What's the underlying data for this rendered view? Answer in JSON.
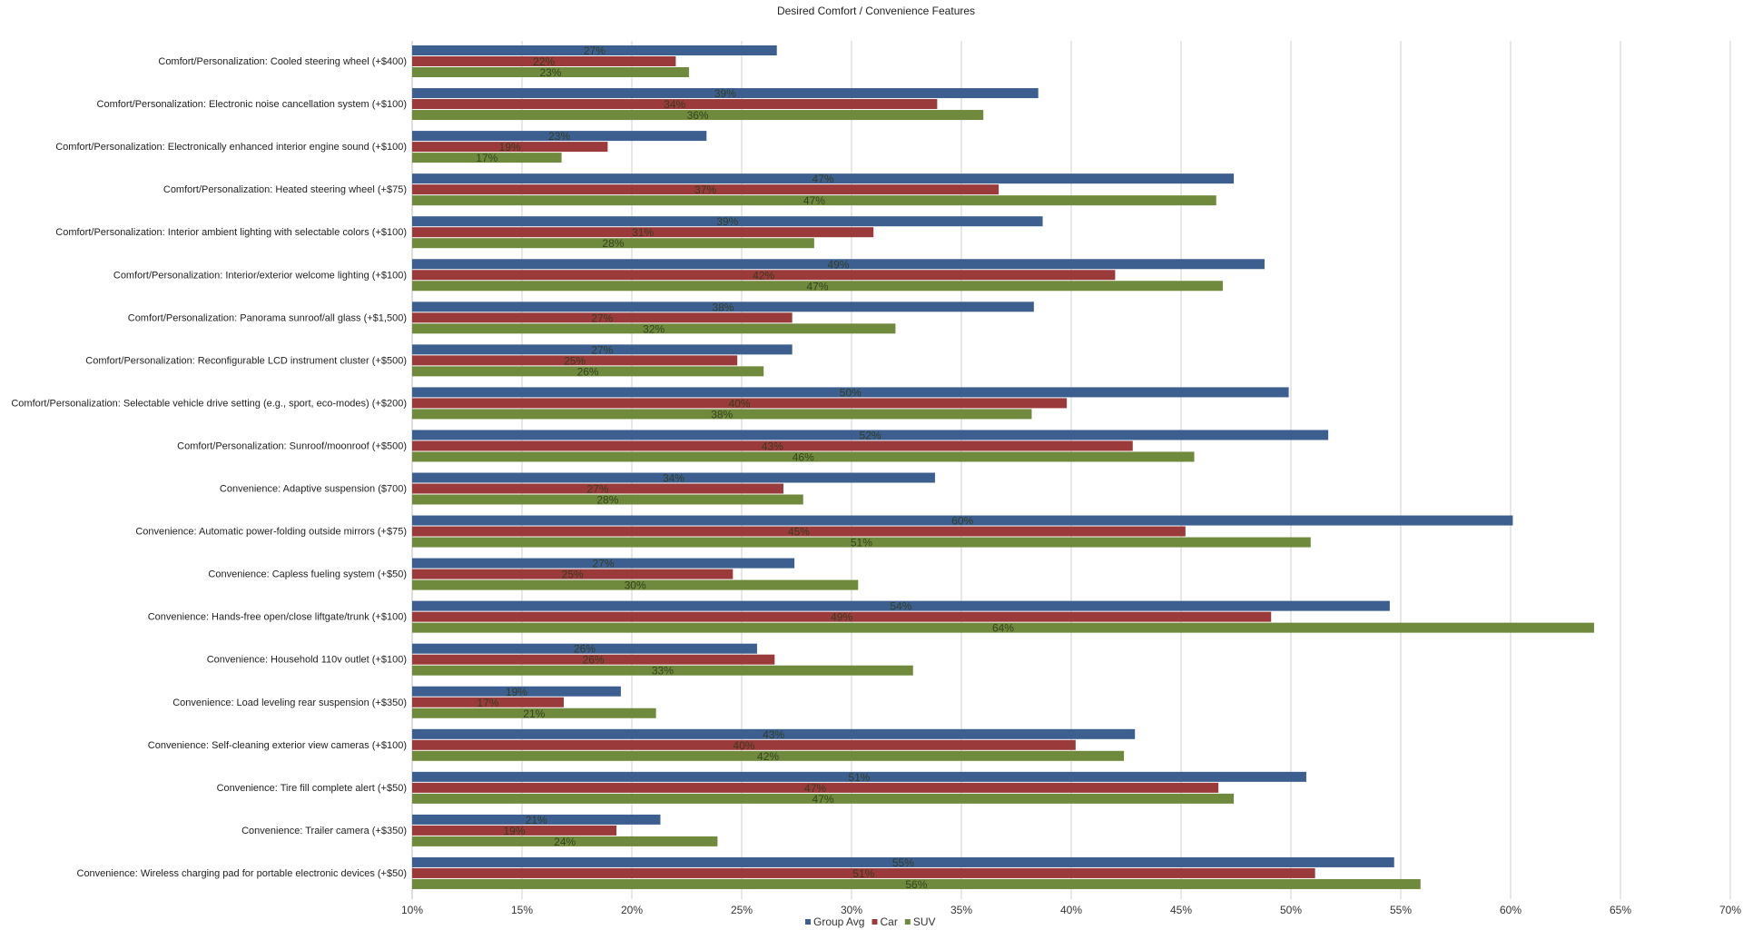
{
  "chart_data": {
    "type": "bar",
    "orientation": "horizontal",
    "title": "Desired Comfort / Convenience Features",
    "categories": [
      "Comfort/Personalization: Cooled steering wheel (+$400)",
      "Comfort/Personalization: Electronic noise cancellation system (+$100)",
      "Comfort/Personalization: Electronically enhanced interior engine sound (+$100)",
      "Comfort/Personalization: Heated steering wheel (+$75)",
      "Comfort/Personalization: Interior ambient lighting with selectable colors (+$100)",
      "Comfort/Personalization: Interior/exterior welcome lighting (+$100)",
      "Comfort/Personalization: Panorama sunroof/all glass (+$1,500)",
      "Comfort/Personalization: Reconfigurable LCD instrument cluster (+$500)",
      "Comfort/Personalization: Selectable vehicle drive setting (e.g., sport, eco-modes) (+$200)",
      "Comfort/Personalization: Sunroof/moonroof (+$500)",
      "Convenience: Adaptive suspension ($700)",
      "Convenience: Automatic power-folding outside mirrors (+$75)",
      "Convenience: Capless fueling system (+$50)",
      "Convenience: Hands-free open/close liftgate/trunk (+$100)",
      "Convenience: Household 110v outlet (+$100)",
      "Convenience: Load leveling rear suspension (+$350)",
      "Convenience: Self-cleaning exterior view cameras (+$100)",
      "Convenience: Tire fill complete alert (+$50)",
      "Convenience: Trailer camera (+$350)",
      "Convenience: Wireless charging pad for portable electronic devices (+$50)"
    ],
    "series": [
      {
        "name": "Group Avg",
        "color": "#3d5f8f",
        "values": [
          26.6,
          38.5,
          23.4,
          47.4,
          38.7,
          48.8,
          38.3,
          27.3,
          49.9,
          51.7,
          33.8,
          60.1,
          27.4,
          54.5,
          25.7,
          19.5,
          42.9,
          50.7,
          21.3,
          54.7
        ],
        "labels": [
          "27%",
          "39%",
          "23%",
          "47%",
          "39%",
          "49%",
          "38%",
          "27%",
          "50%",
          "52%",
          "34%",
          "60%",
          "27%",
          "54%",
          "26%",
          "19%",
          "43%",
          "51%",
          "21%",
          "55%"
        ]
      },
      {
        "name": "Car",
        "color": "#9b3a3a",
        "values": [
          22.0,
          33.9,
          18.9,
          36.7,
          31.0,
          42.0,
          27.3,
          24.8,
          39.8,
          42.8,
          26.9,
          45.2,
          24.6,
          49.1,
          26.5,
          16.9,
          40.2,
          46.7,
          19.3,
          51.1
        ],
        "labels": [
          "22%",
          "34%",
          "19%",
          "37%",
          "31%",
          "42%",
          "27%",
          "25%",
          "40%",
          "43%",
          "27%",
          "45%",
          "25%",
          "49%",
          "26%",
          "17%",
          "40%",
          "47%",
          "19%",
          "51%"
        ]
      },
      {
        "name": "SUV",
        "color": "#6f8a3c",
        "values": [
          22.6,
          36.0,
          16.8,
          46.6,
          28.3,
          46.9,
          32.0,
          26.0,
          38.2,
          45.6,
          27.8,
          50.9,
          30.3,
          63.8,
          32.8,
          21.1,
          42.4,
          47.4,
          23.9,
          55.9
        ],
        "labels": [
          "23%",
          "36%",
          "17%",
          "47%",
          "28%",
          "47%",
          "32%",
          "26%",
          "38%",
          "46%",
          "28%",
          "51%",
          "30%",
          "64%",
          "33%",
          "21%",
          "42%",
          "47%",
          "24%",
          "56%"
        ]
      }
    ],
    "xlim": [
      10,
      70
    ],
    "x_ticks": [
      10,
      15,
      20,
      25,
      30,
      35,
      40,
      45,
      50,
      55,
      60,
      65,
      70
    ],
    "x_tick_labels": [
      "10%",
      "15%",
      "20%",
      "25%",
      "30%",
      "35%",
      "40%",
      "45%",
      "50%",
      "55%",
      "60%",
      "65%",
      "70%"
    ],
    "grid": "vertical",
    "legend": "bottom"
  }
}
